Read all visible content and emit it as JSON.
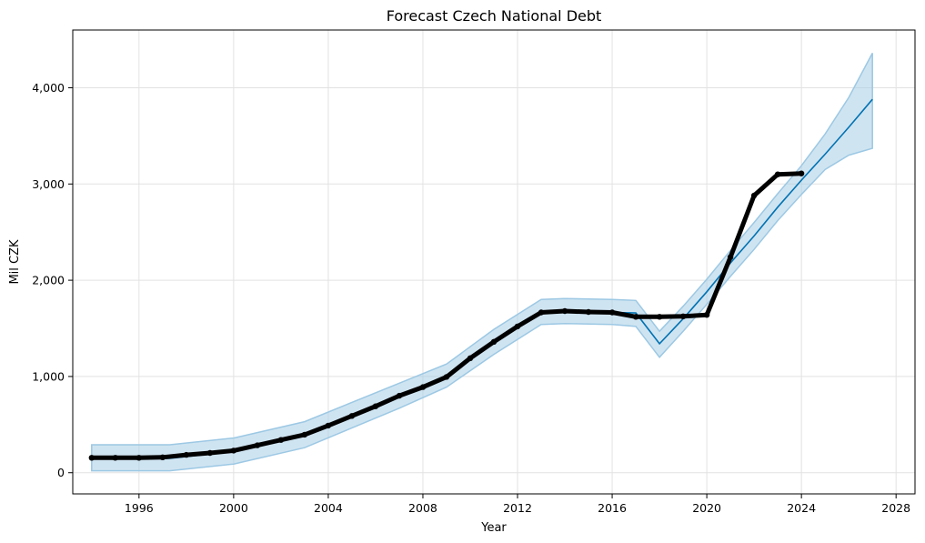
{
  "chart_data": {
    "type": "line",
    "title": "Forecast Czech National Debt",
    "xlabel": "Year",
    "ylabel": "Mil CZK",
    "xlim": [
      1993.2,
      2028.8
    ],
    "ylim": [
      -220,
      4600
    ],
    "xticks": [
      1996,
      2000,
      2004,
      2008,
      2012,
      2016,
      2020,
      2024,
      2028
    ],
    "xtick_labels": [
      "1996",
      "2000",
      "2004",
      "2008",
      "2012",
      "2016",
      "2020",
      "2024",
      "2028"
    ],
    "yticks": [
      0,
      1000,
      2000,
      3000,
      4000
    ],
    "ytick_labels": [
      "0",
      "1,000",
      "2,000",
      "3,000",
      "4,000"
    ],
    "grid": true,
    "colors": {
      "forecast": "#0072b2",
      "interval": "#a8cde6",
      "interval_edge": "#9cc8e4",
      "actual": "#000000"
    },
    "series": [
      {
        "name": "actual",
        "style": "markers",
        "x": [
          1994,
          1995,
          1996,
          1997,
          1998,
          1999,
          2000,
          2001,
          2002,
          2003,
          2004,
          2005,
          2006,
          2007,
          2008,
          2009,
          2010,
          2011,
          2012,
          2013,
          2014,
          2015,
          2016,
          2017,
          2018,
          2019,
          2020,
          2021,
          2022,
          2023,
          2024
        ],
        "y": [
          155,
          155,
          155,
          160,
          185,
          205,
          230,
          285,
          340,
          395,
          490,
          590,
          690,
          800,
          890,
          995,
          1190,
          1360,
          1520,
          1665,
          1680,
          1670,
          1665,
          1620,
          1620,
          1625,
          1640,
          2240,
          2880,
          3100,
          3110
        ]
      },
      {
        "name": "forecast",
        "style": "line",
        "x": [
          1994,
          1996,
          1997.3,
          2000,
          2003,
          2007,
          2009,
          2011,
          2013,
          2014,
          2016,
          2017,
          2018,
          2019,
          2020,
          2021,
          2022,
          2023,
          2024,
          2025,
          2026,
          2027
        ],
        "y": [
          150,
          150,
          150,
          220,
          390,
          800,
          1010,
          1360,
          1660,
          1670,
          1665,
          1660,
          1340,
          1600,
          1880,
          2180,
          2460,
          2760,
          3040,
          3310,
          3590,
          3880
        ]
      },
      {
        "name": "uncertainty_interval",
        "style": "band",
        "x": [
          1994,
          1996,
          1997.3,
          2000,
          2003,
          2007,
          2009,
          2011,
          2013,
          2014,
          2016,
          2017,
          2018,
          2019,
          2020,
          2021,
          2022,
          2023,
          2024,
          2025,
          2026,
          2027
        ],
        "lower": [
          20,
          20,
          20,
          90,
          260,
          670,
          890,
          1230,
          1540,
          1550,
          1540,
          1520,
          1200,
          1470,
          1750,
          2040,
          2320,
          2620,
          2890,
          3150,
          3300,
          3370
        ],
        "upper": [
          290,
          290,
          290,
          360,
          530,
          930,
          1130,
          1490,
          1800,
          1810,
          1800,
          1790,
          1470,
          1730,
          2010,
          2310,
          2600,
          2900,
          3190,
          3520,
          3900,
          4360
        ]
      }
    ]
  }
}
